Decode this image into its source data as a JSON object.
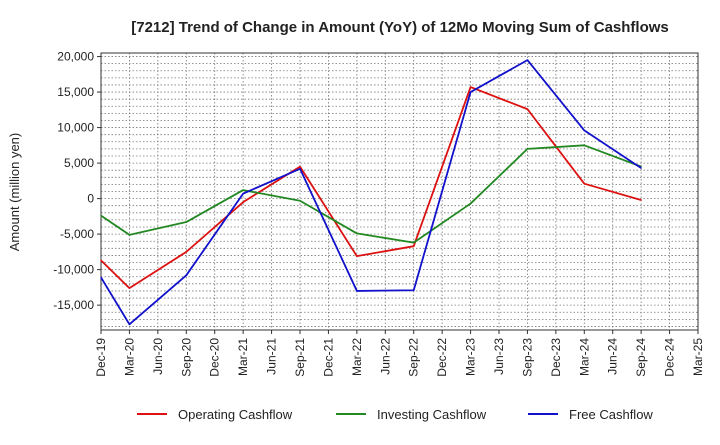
{
  "chart_data": {
    "type": "line",
    "title": "[7212]  Trend of Change in Amount (YoY) of 12Mo Moving Sum of Cashflows",
    "xlabel": "",
    "ylabel": "Amount (million yen)",
    "ylim": [
      -18500,
      20500
    ],
    "yticks": [
      -15000,
      -10000,
      -5000,
      0,
      5000,
      10000,
      15000,
      20000
    ],
    "ytick_labels": [
      "-15,000",
      "-10,000",
      "-5,000",
      "0",
      "5,000",
      "10,000",
      "15,000",
      "20,000"
    ],
    "categories": [
      "Dec-19",
      "Mar-20",
      "Jun-20",
      "Sep-20",
      "Dec-20",
      "Mar-21",
      "Jun-21",
      "Sep-21",
      "Dec-21",
      "Mar-22",
      "Jun-22",
      "Sep-22",
      "Dec-22",
      "Mar-23",
      "Jun-23",
      "Sep-23",
      "Dec-23",
      "Mar-24",
      "Jun-24",
      "Sep-24",
      "Dec-24",
      "Mar-25"
    ],
    "grid": true,
    "legend_position": "bottom",
    "series": [
      {
        "name": "Operating Cashflow",
        "color": "#dd1111",
        "values": [
          -8700,
          -12600,
          null,
          -7500,
          null,
          -500,
          null,
          4500,
          null,
          -8100,
          null,
          -6700,
          null,
          15700,
          null,
          12600,
          null,
          2100,
          null,
          -200,
          null,
          null
        ]
      },
      {
        "name": "Investing Cashflow",
        "color": "#228822",
        "values": [
          -2400,
          -5100,
          null,
          -3300,
          null,
          1200,
          null,
          -300,
          null,
          -4900,
          null,
          -6200,
          null,
          -700,
          null,
          7000,
          null,
          7500,
          null,
          4500,
          null,
          null
        ]
      },
      {
        "name": "Free Cashflow",
        "color": "#1111cc",
        "values": [
          -11100,
          -17700,
          null,
          -10800,
          null,
          700,
          null,
          4200,
          null,
          -13000,
          null,
          -12900,
          null,
          15000,
          null,
          19500,
          null,
          9600,
          null,
          4300,
          null,
          null
        ]
      }
    ]
  }
}
